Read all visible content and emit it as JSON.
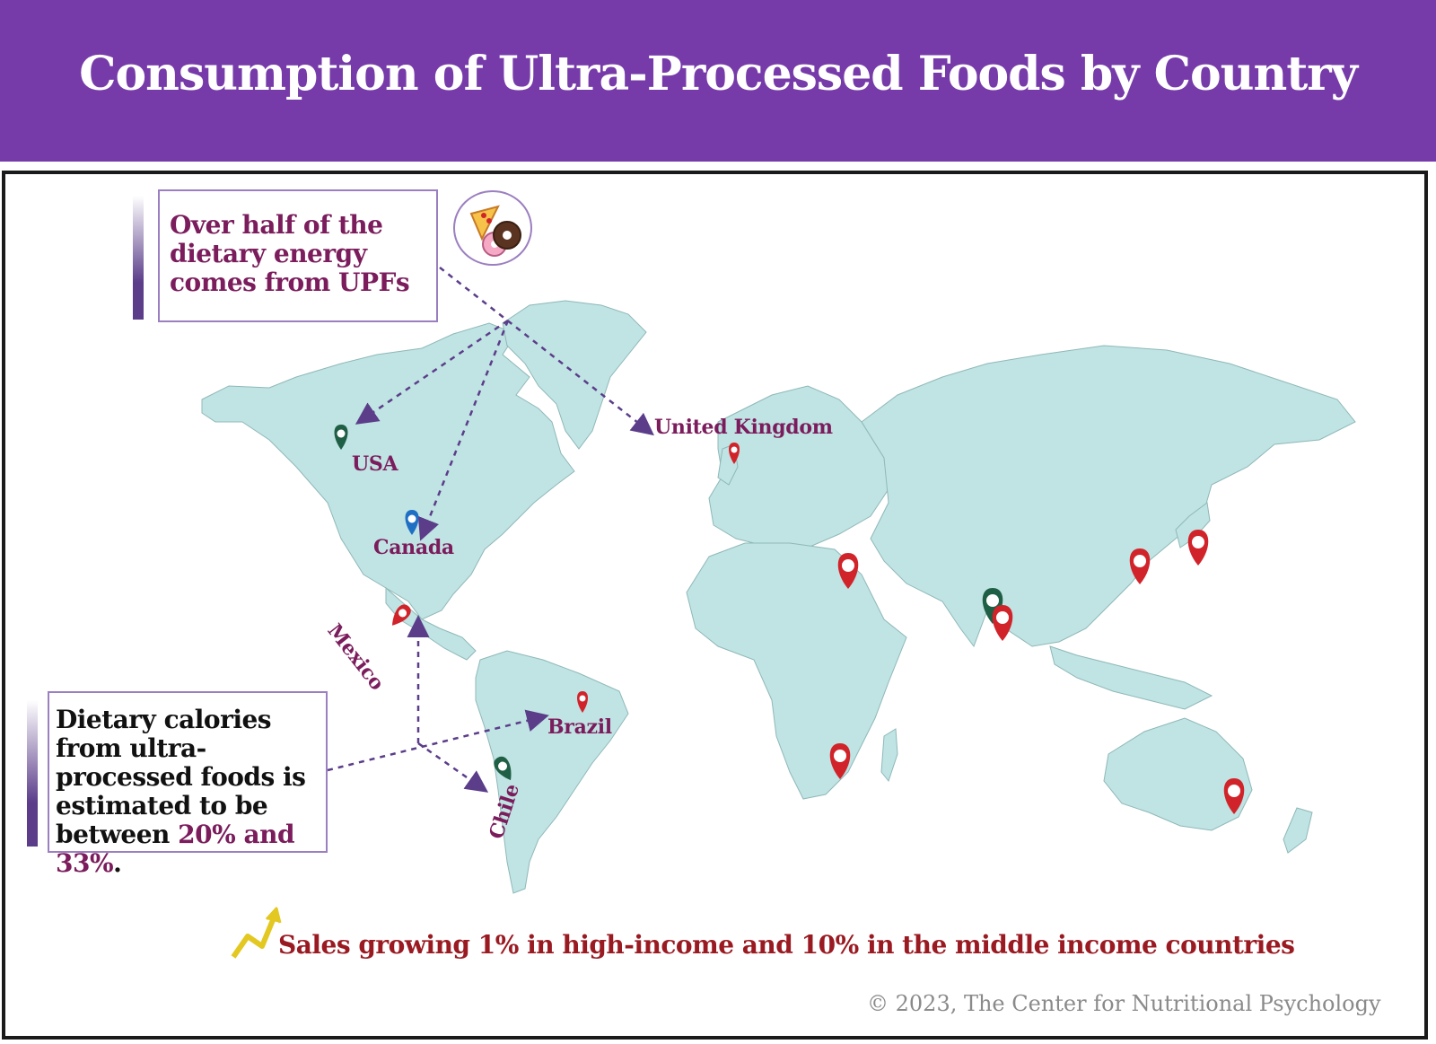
{
  "title": "Consumption of Ultra-Processed Foods by Country",
  "callout_top": "Over half of the dietary energy comes from UPFs",
  "callout_bottom": {
    "text_start": "Dietary calories from ultra-processed foods is estimated to be between ",
    "highlight": "20% and 33%",
    "text_end": "."
  },
  "countries": {
    "united_kingdom": "United Kingdom",
    "usa": "USA",
    "canada": "Canada",
    "mexico": "Mexico",
    "brazil": "Brazil",
    "chile": "Chile"
  },
  "sales_note": "Sales growing 1% in high-income and 10% in the middle income countries",
  "copyright": "© 2023, The Center for Nutritional Psychology",
  "colors": {
    "header": "#763ba9",
    "land": "#c0e3e3",
    "label": "#7b1c5c",
    "marker_red": "#d1232a",
    "marker_green": "#1f5f45",
    "marker_blue": "#1f6fc4",
    "arrow": "#5b3d8a",
    "sales_text": "#9a1a22"
  },
  "icons": [
    "pizza-icon",
    "donut-icon",
    "trend-arrow-icon",
    "map-pin-icon"
  ]
}
